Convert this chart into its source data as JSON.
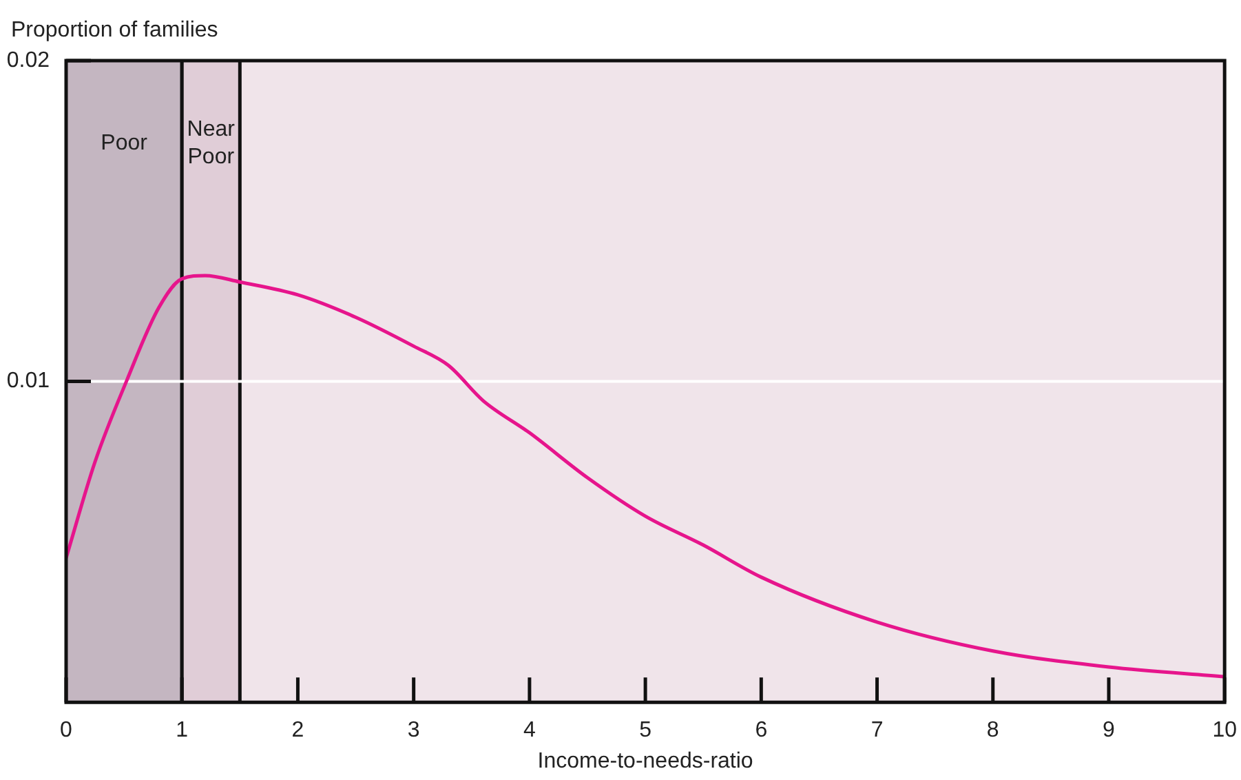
{
  "chart_data": {
    "type": "line",
    "ylabel": "Proportion of families",
    "xlabel": "Income-to-needs-ratio",
    "x": [
      0,
      0.25,
      0.52,
      0.8,
      1,
      1.2,
      1.5,
      2,
      2.5,
      3,
      3.3,
      3.6,
      4,
      4.5,
      5,
      5.5,
      6,
      7,
      8,
      9,
      10
    ],
    "series": [
      {
        "color": "#e6158c",
        "values": [
          0.0045,
          0.0075,
          0.01,
          0.0123,
          0.0132,
          0.0133,
          0.0131,
          0.0127,
          0.012,
          0.0111,
          0.0105,
          0.0094,
          0.0084,
          0.007,
          0.0058,
          0.0049,
          0.0039,
          0.0025,
          0.0016,
          0.0011,
          0.0008
        ]
      }
    ],
    "xlim": [
      0,
      10
    ],
    "xticks": [
      0,
      1,
      2,
      3,
      4,
      5,
      6,
      7,
      8,
      9,
      10
    ],
    "ylim": [
      0,
      0.02
    ],
    "yticks": [
      0.01,
      0.02
    ],
    "bands": [
      {
        "axis": "x",
        "from": 0,
        "to": 1,
        "label": "Poor",
        "color": "#c4b6c1"
      },
      {
        "axis": "x",
        "from": 1,
        "to": 1.5,
        "label": "Near Poor",
        "color": "#e0cdd7"
      }
    ],
    "ref_lines": [
      {
        "axis": "y",
        "value": 0.01,
        "color": "#ffffff"
      }
    ],
    "legend": false,
    "marker": "none",
    "line_style": "solid"
  }
}
